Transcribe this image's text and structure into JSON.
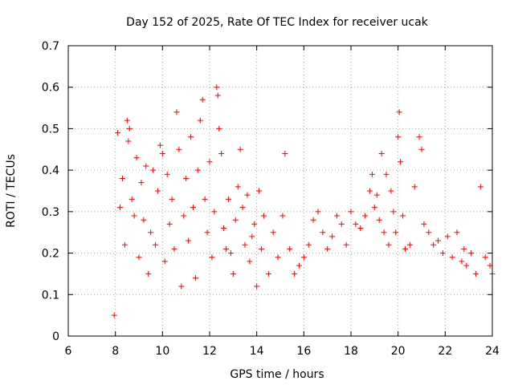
{
  "chart_data": {
    "type": "scatter",
    "title": "Day 152 of 2025, Rate Of TEC Index for receiver ucak",
    "xlabel": "GPS time / hours",
    "ylabel": "ROTI / TECUs",
    "xlim": [
      6,
      24
    ],
    "ylim": [
      0,
      0.7
    ],
    "xticks": [
      "6",
      "8",
      "10",
      "12",
      "14",
      "16",
      "18",
      "20",
      "22",
      "24"
    ],
    "yticks": [
      "0",
      "0.1",
      "0.2",
      "0.3",
      "0.4",
      "0.5",
      "0.6",
      "0.7"
    ],
    "grid": true,
    "marker": "plus",
    "color": "#ff0000",
    "series": [
      {
        "x": [
          7.95,
          8.1,
          8.2,
          8.3,
          8.4,
          8.5,
          8.55,
          8.6,
          8.7,
          8.8,
          8.9,
          9.0,
          9.1,
          9.2,
          9.3,
          9.4,
          9.5,
          9.6,
          9.7,
          9.8,
          9.9,
          10.0,
          10.1,
          10.2,
          10.3,
          10.4,
          10.5,
          10.6,
          10.7,
          10.8,
          10.9,
          11.0,
          11.1,
          11.2,
          11.3,
          11.4,
          11.5,
          11.6,
          11.7,
          11.8,
          11.9,
          12.0,
          12.1,
          12.2,
          12.3,
          12.35,
          12.4,
          12.5,
          12.6,
          12.7,
          12.8,
          12.9,
          13.0,
          13.1,
          13.2,
          13.3,
          13.4,
          13.5,
          13.6,
          13.7,
          13.8,
          13.9,
          14.0,
          14.1,
          14.2,
          14.3,
          14.5,
          14.7,
          14.9,
          15.1,
          15.2,
          15.4,
          15.6,
          15.8,
          16.0,
          16.2,
          16.4,
          16.6,
          16.8,
          17.0,
          17.2,
          17.4,
          17.6,
          17.8,
          18.0,
          18.2,
          18.4,
          18.6,
          18.8,
          18.9,
          19.0,
          19.1,
          19.2,
          19.3,
          19.4,
          19.5,
          19.6,
          19.7,
          19.8,
          19.9,
          20.0,
          20.05,
          20.1,
          20.2,
          20.3,
          20.5,
          20.7,
          20.9,
          21.0,
          21.1,
          21.3,
          21.5,
          21.7,
          21.9,
          22.1,
          22.3,
          22.5,
          22.7,
          22.8,
          22.9,
          23.1,
          23.3,
          23.5,
          23.7,
          23.9,
          24.0
        ],
        "y": [
          0.05,
          0.49,
          0.31,
          0.38,
          0.22,
          0.52,
          0.47,
          0.5,
          0.33,
          0.29,
          0.43,
          0.19,
          0.37,
          0.28,
          0.41,
          0.15,
          0.25,
          0.4,
          0.22,
          0.35,
          0.46,
          0.44,
          0.18,
          0.39,
          0.27,
          0.33,
          0.21,
          0.54,
          0.45,
          0.12,
          0.29,
          0.38,
          0.23,
          0.48,
          0.31,
          0.14,
          0.4,
          0.52,
          0.57,
          0.33,
          0.25,
          0.42,
          0.19,
          0.3,
          0.6,
          0.58,
          0.5,
          0.44,
          0.26,
          0.21,
          0.33,
          0.2,
          0.15,
          0.28,
          0.36,
          0.45,
          0.31,
          0.22,
          0.34,
          0.18,
          0.24,
          0.27,
          0.12,
          0.35,
          0.21,
          0.29,
          0.15,
          0.25,
          0.19,
          0.29,
          0.44,
          0.21,
          0.15,
          0.17,
          0.19,
          0.22,
          0.28,
          0.3,
          0.25,
          0.21,
          0.24,
          0.29,
          0.27,
          0.22,
          0.3,
          0.27,
          0.26,
          0.29,
          0.35,
          0.39,
          0.31,
          0.34,
          0.28,
          0.44,
          0.25,
          0.39,
          0.22,
          0.35,
          0.3,
          0.25,
          0.48,
          0.54,
          0.42,
          0.29,
          0.21,
          0.22,
          0.36,
          0.48,
          0.45,
          0.27,
          0.25,
          0.22,
          0.23,
          0.2,
          0.24,
          0.19,
          0.25,
          0.18,
          0.21,
          0.17,
          0.2,
          0.15,
          0.36,
          0.19,
          0.17,
          0.15
        ]
      }
    ]
  }
}
